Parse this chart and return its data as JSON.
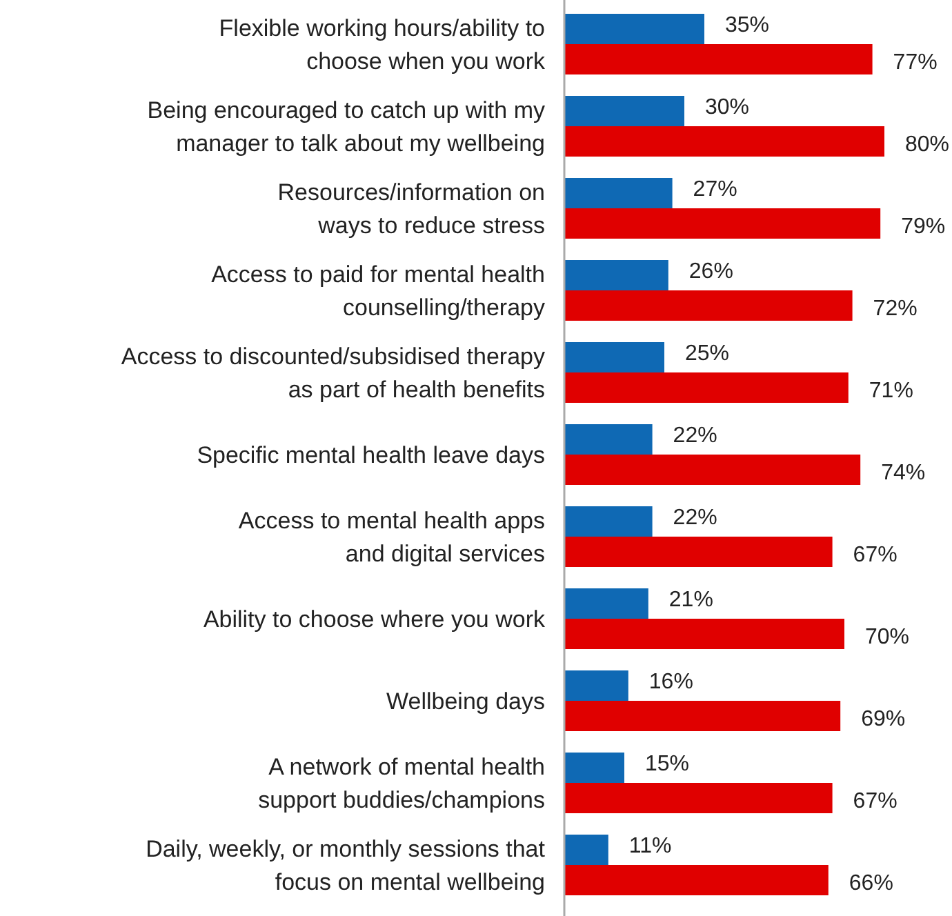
{
  "chart_data": {
    "type": "bar",
    "orientation": "horizontal",
    "tick_labels": "y",
    "categories": [
      "Flexible working hours/ability to\nchoose when you work",
      "Being encouraged to catch up with my\nmanager to talk about my wellbeing",
      "Resources/information on\nways to reduce stress",
      "Access to paid for mental health\ncounselling/therapy",
      "Access to discounted/subsidised therapy\nas part of health benefits",
      "Specific mental health leave days",
      "Access to mental health apps\nand digital services",
      "Ability to choose where you work",
      "Wellbeing days",
      "A network of mental health\nsupport buddies/champions",
      "Daily, weekly, or monthly sessions that\nfocus on mental wellbeing"
    ],
    "series": [
      {
        "color": "#0f69b4",
        "values": [
          35,
          30,
          27,
          26,
          25,
          22,
          22,
          21,
          16,
          15,
          11
        ],
        "value_labels": [
          "35%",
          "30%",
          "27%",
          "26%",
          "25%",
          "22%",
          "22%",
          "21%",
          "16%",
          "15%",
          "11%"
        ]
      },
      {
        "color": "#e00000",
        "values": [
          77,
          80,
          79,
          72,
          71,
          74,
          67,
          70,
          69,
          67,
          66
        ],
        "value_labels": [
          "77%",
          "80%",
          "79%",
          "72%",
          "71%",
          "74%",
          "67%",
          "70%",
          "69%",
          "67%",
          "66%"
        ]
      }
    ]
  }
}
